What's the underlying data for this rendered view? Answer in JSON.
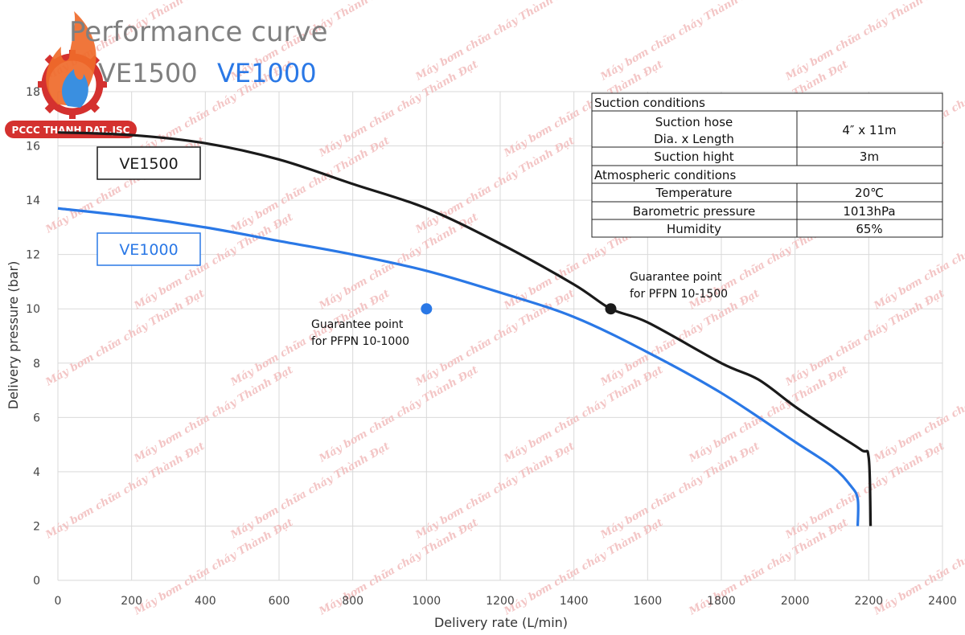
{
  "chart_data": {
    "type": "line",
    "title": "Performance curve",
    "subtitle_parts": [
      "VE1500",
      "VE1000"
    ],
    "xlabel": "Delivery rate (L/min)",
    "ylabel": "Delivery pressure (bar)",
    "xlim": [
      0,
      2400
    ],
    "ylim": [
      0,
      18
    ],
    "xticks": [
      0,
      200,
      400,
      600,
      800,
      1000,
      1200,
      1400,
      1600,
      1800,
      2000,
      2200,
      2400
    ],
    "yticks": [
      0,
      2,
      4,
      6,
      8,
      10,
      12,
      14,
      16,
      18
    ],
    "grid": true,
    "series": [
      {
        "name": "VE1500",
        "color": "#1a1a1a",
        "points": [
          [
            0,
            16.5
          ],
          [
            200,
            16.4
          ],
          [
            400,
            16.1
          ],
          [
            600,
            15.5
          ],
          [
            800,
            14.6
          ],
          [
            1000,
            13.7
          ],
          [
            1200,
            12.4
          ],
          [
            1400,
            10.9
          ],
          [
            1500,
            10.0
          ],
          [
            1600,
            9.5
          ],
          [
            1800,
            8.0
          ],
          [
            1900,
            7.4
          ],
          [
            2000,
            6.4
          ],
          [
            2100,
            5.5
          ],
          [
            2180,
            4.8
          ],
          [
            2200,
            4.5
          ],
          [
            2205,
            2.0
          ]
        ]
      },
      {
        "name": "VE1000",
        "color": "#2a78e6",
        "points": [
          [
            0,
            13.7
          ],
          [
            200,
            13.4
          ],
          [
            400,
            13.0
          ],
          [
            600,
            12.5
          ],
          [
            800,
            12.0
          ],
          [
            1000,
            11.4
          ],
          [
            1200,
            10.6
          ],
          [
            1400,
            9.7
          ],
          [
            1600,
            8.4
          ],
          [
            1800,
            6.9
          ],
          [
            2000,
            5.1
          ],
          [
            2100,
            4.2
          ],
          [
            2150,
            3.5
          ],
          [
            2170,
            3.0
          ],
          [
            2170,
            2.0
          ]
        ]
      }
    ],
    "guarantee_points": [
      {
        "x": 1000,
        "y": 10,
        "color": "#2a78e6",
        "label_line1": "Guarantee point",
        "label_line2": "for PFPN 10-1000"
      },
      {
        "x": 1500,
        "y": 10,
        "color": "#1a1a1a",
        "label_line1": "Guarantee point",
        "label_line2": "for PFPN 10-1500"
      }
    ],
    "legend": [
      {
        "label": "VE1500",
        "color": "#1a1a1a"
      },
      {
        "label": "VE1000",
        "color": "#2a78e6"
      }
    ]
  },
  "conditions_table": {
    "suction_header": "Suction conditions",
    "hose_label_line1": "Suction hose",
    "hose_label_line2": "Dia. x Length",
    "hose_value": "4″ x 11m",
    "hight_label": "Suction hight",
    "hight_value": "3m",
    "atmos_header": "Atmospheric conditions",
    "temp_label": "Temperature",
    "temp_value": "20℃",
    "baro_label": "Barometric pressure",
    "baro_value": "1013hPa",
    "humidity_label": "Humidity",
    "humidity_value": "65%"
  },
  "logo": {
    "text": "PCCC THANH DAT.,JSC"
  },
  "watermark": {
    "text": "Máy bơm chữa cháy Thành Đạt"
  }
}
